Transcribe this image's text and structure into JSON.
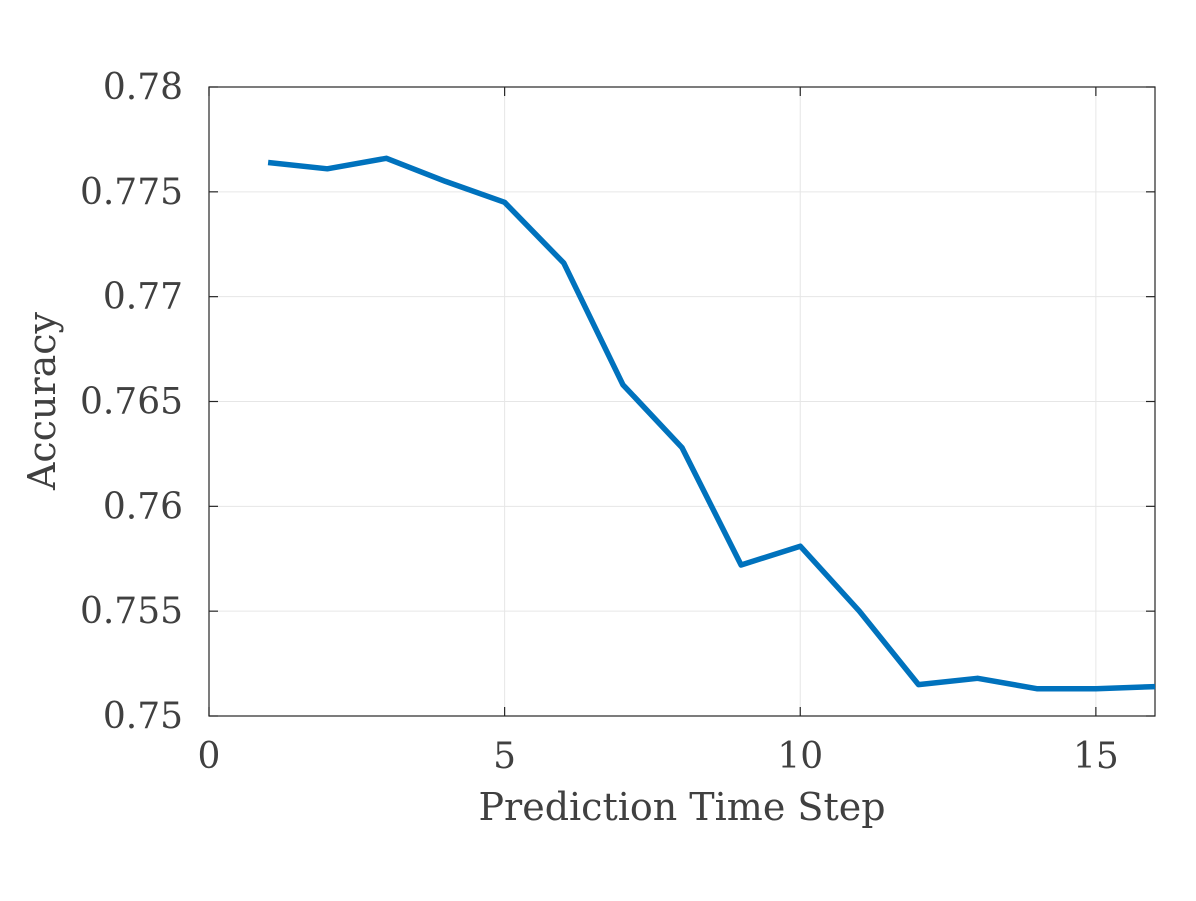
{
  "chart_data": {
    "type": "line",
    "title": "",
    "xlabel": "Prediction Time Step",
    "ylabel": "Accuracy",
    "xlim": [
      0,
      16
    ],
    "ylim": [
      0.75,
      0.78
    ],
    "xticks": [
      0,
      5,
      10,
      15
    ],
    "xtick_labels": [
      "0",
      "5",
      "10",
      "15"
    ],
    "yticks": [
      0.75,
      0.755,
      0.76,
      0.765,
      0.77,
      0.775,
      0.78
    ],
    "ytick_labels": [
      "0.75",
      "0.755",
      "0.76",
      "0.765",
      "0.77",
      "0.775",
      "0.78"
    ],
    "grid": true,
    "box": true,
    "series": [
      {
        "color": "#0072BD",
        "x": [
          1,
          2,
          3,
          4,
          5,
          6,
          7,
          8,
          9,
          10,
          11,
          12,
          13,
          14,
          15,
          16
        ],
        "y": [
          0.7764,
          0.7761,
          0.7766,
          0.7755,
          0.7745,
          0.7716,
          0.7658,
          0.7628,
          0.7572,
          0.7581,
          0.755,
          0.7515,
          0.7518,
          0.7513,
          0.7513,
          0.7514
        ]
      }
    ]
  }
}
